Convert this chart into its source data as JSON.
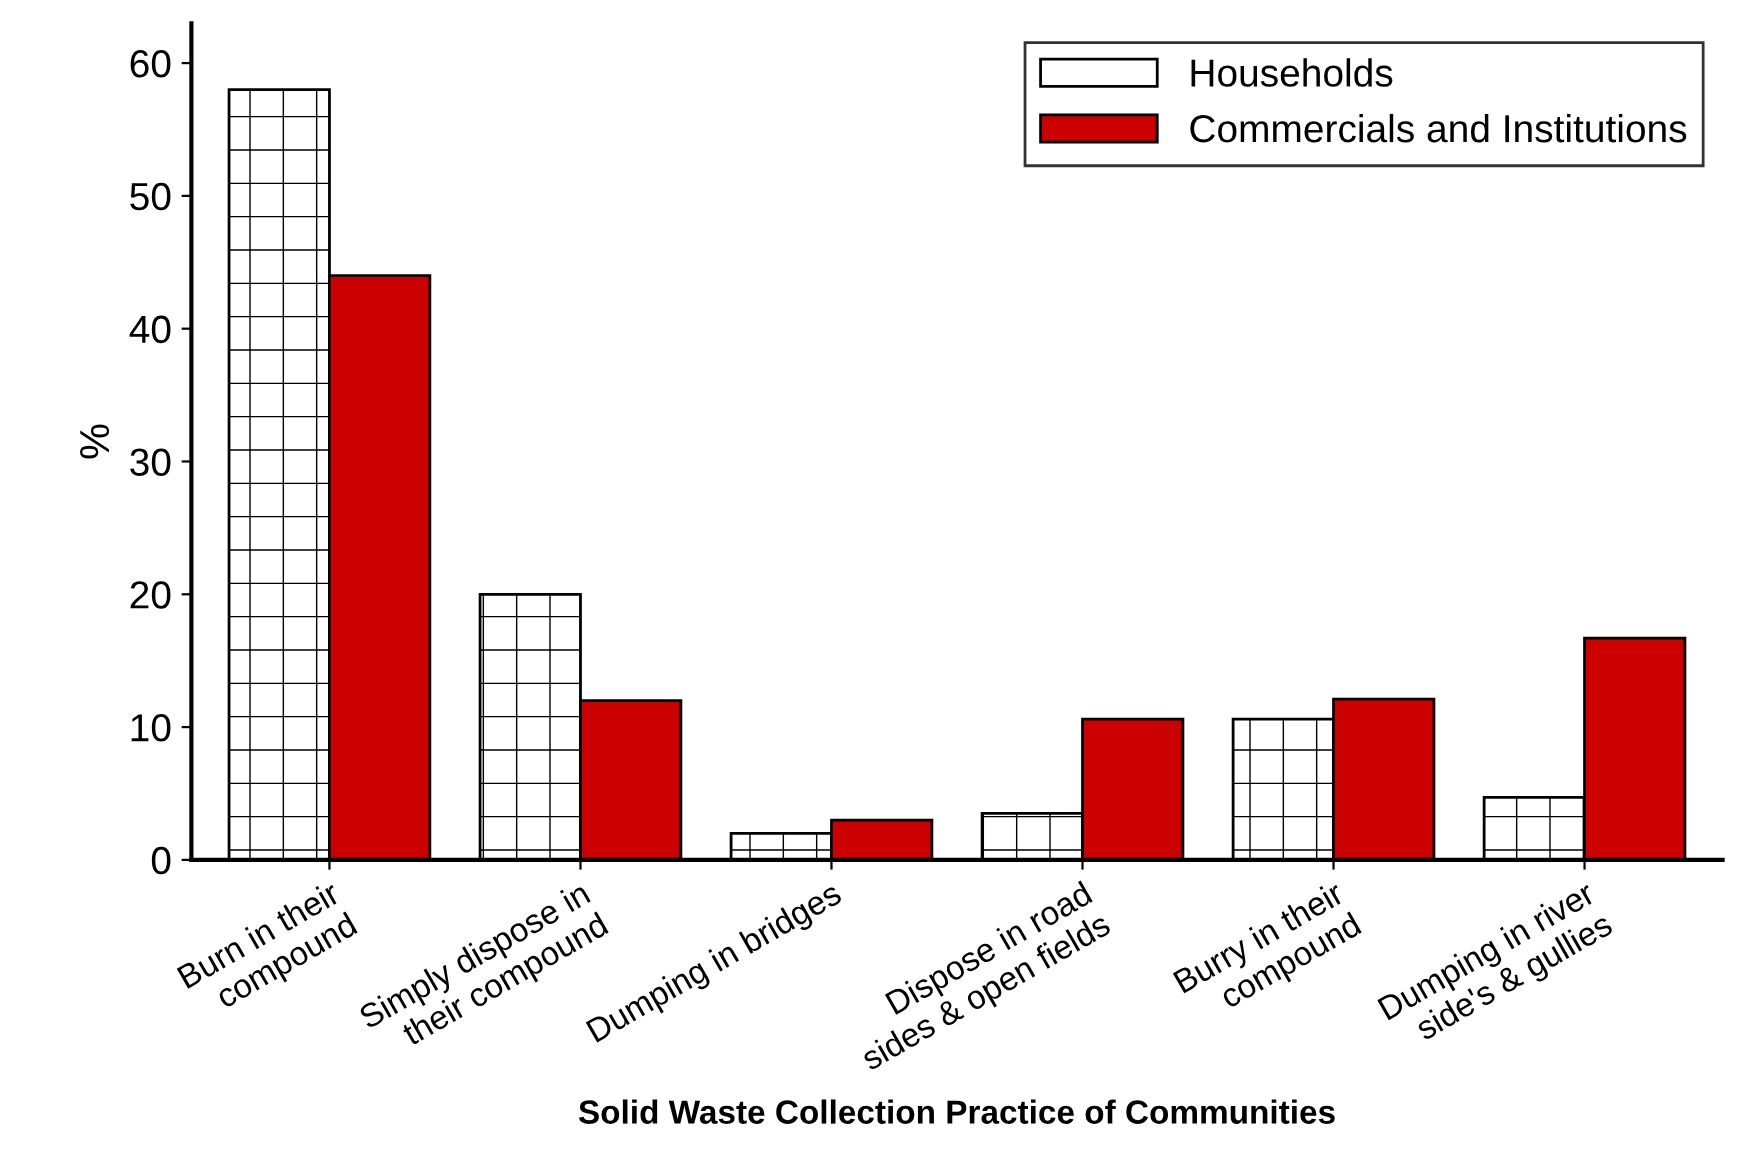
{
  "chart_data": {
    "type": "bar",
    "xlabel": "Solid Waste Collection Practice of Communities",
    "ylabel": "%",
    "categories": [
      "Burn in their\ncompound",
      "Simply dispose in\ntheir compound",
      "Dumping in bridges",
      "Dispose in road\nsides & open fields",
      "Burry in their\ncompound",
      "Dumping in river\nside's & gullies"
    ],
    "series": [
      {
        "name": "Households",
        "color": "#ffffff",
        "values": [
          58,
          20,
          2,
          3.5,
          10.6,
          4.7
        ]
      },
      {
        "name": "Commercials and Institutions",
        "color": "#cc0000",
        "values": [
          44,
          12,
          3,
          10.6,
          12.1,
          16.7
        ]
      }
    ],
    "ylim": [
      0,
      63
    ],
    "yticks": [
      0,
      10,
      20,
      30,
      40,
      50,
      60
    ],
    "grid": false,
    "legend": "top right"
  }
}
